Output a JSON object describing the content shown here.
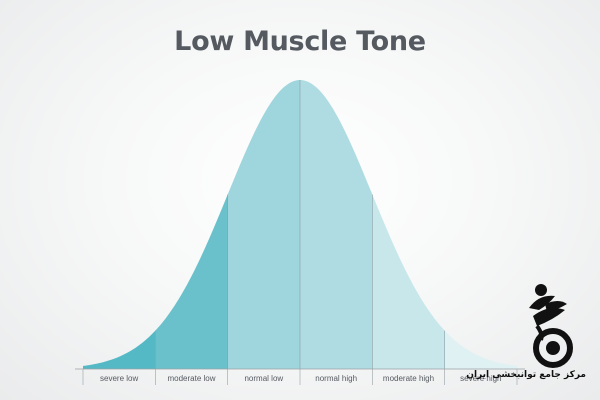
{
  "title": "Low Muscle Tone",
  "diagram": {
    "type": "bell-curve",
    "segments": [
      {
        "label": "severe low",
        "color": "#55b9c5"
      },
      {
        "label": "moderate low",
        "color": "#6bc1cb"
      },
      {
        "label": "normal low",
        "color": "#9fd5dc"
      },
      {
        "label": "normal high",
        "color": "#aedce2"
      },
      {
        "label": "moderate high",
        "color": "#c7e7eb"
      },
      {
        "label": "severe high",
        "color": "#dff1f3"
      }
    ],
    "divider_color": "#8aa1a6",
    "axis_color": "#9aa0a5"
  },
  "logo": {
    "icon": "wheelchair-person-icon",
    "text": "مرکز جامع توانبخشی ایران"
  }
}
